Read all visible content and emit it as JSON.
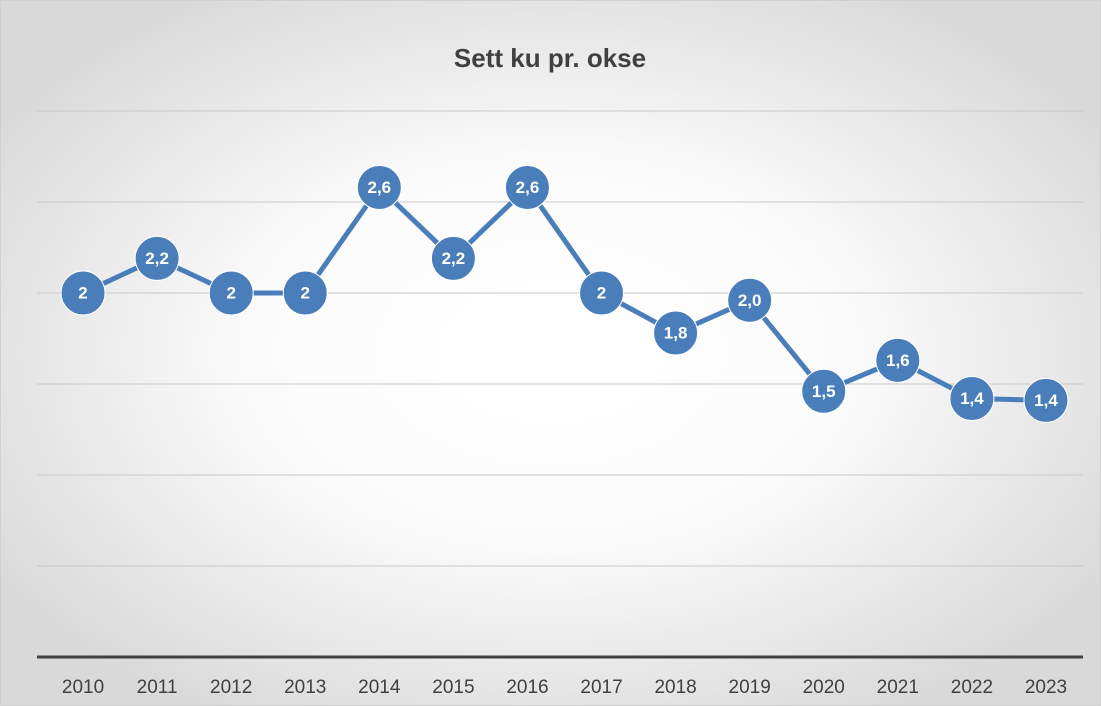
{
  "chart_data": {
    "type": "line",
    "title": "Sett ku pr. okse",
    "categories": [
      "2010",
      "2011",
      "2012",
      "2013",
      "2014",
      "2015",
      "2016",
      "2017",
      "2018",
      "2019",
      "2020",
      "2021",
      "2022",
      "2023"
    ],
    "series": [
      {
        "name": "Sett ku pr. okse",
        "color": "#4a7ebb",
        "values": [
          2,
          2.19,
          2,
          2,
          2.58,
          2.19,
          2.58,
          2,
          1.78,
          1.96,
          1.46,
          1.63,
          1.42,
          1.41
        ],
        "value_labels": [
          "2",
          "2,2",
          "2",
          "2",
          "2,6",
          "2,2",
          "2,6",
          "2",
          "1,8",
          "2,0",
          "1,5",
          "1,6",
          "1,4",
          "1,4"
        ]
      }
    ],
    "ylim": [
      0,
      3
    ],
    "yticks": [
      0,
      0.5,
      1,
      1.5,
      2,
      2.5,
      3
    ],
    "grid": true
  }
}
